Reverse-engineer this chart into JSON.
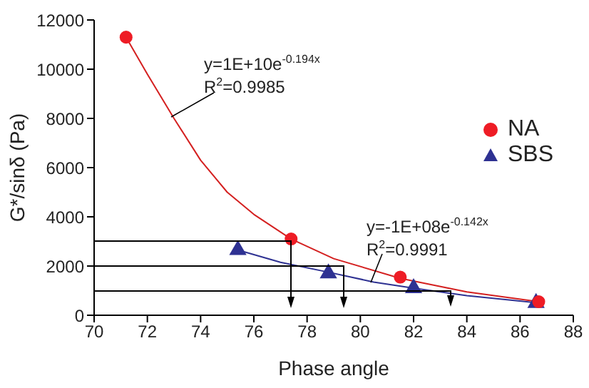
{
  "chart_data": {
    "type": "scatter",
    "xlabel": "Phase angle",
    "ylabel": "G*/sinδ (Pa)",
    "xlim": [
      70,
      88
    ],
    "xticks": [
      70,
      72,
      74,
      76,
      78,
      80,
      82,
      84,
      86,
      88
    ],
    "ylim": [
      0,
      12000
    ],
    "yticks": [
      0,
      2000,
      4000,
      6000,
      8000,
      10000,
      12000
    ],
    "grid": false,
    "legend": "right",
    "series": [
      {
        "name": "NA",
        "marker": "circle",
        "color": "#ee1c25",
        "x": [
          71.2,
          77.4,
          81.5,
          86.7
        ],
        "values": [
          11300,
          3100,
          1550,
          550
        ]
      },
      {
        "name": "SBS",
        "marker": "triangle",
        "color": "#2e3192",
        "x": [
          75.4,
          78.8,
          82.0,
          86.6
        ],
        "values": [
          2650,
          1700,
          1100,
          500
        ]
      },
      {
        "type": "line",
        "marker": "none",
        "color": "#d42020",
        "x": [
          71.2,
          72,
          73,
          74,
          75,
          76,
          77.4,
          79,
          81.5,
          84,
          86.7
        ],
        "values": [
          11300,
          9800,
          8000,
          6300,
          5000,
          4100,
          3100,
          2300,
          1500,
          950,
          550
        ]
      },
      {
        "type": "line",
        "marker": "none",
        "color": "#2e3192",
        "x": [
          75.4,
          77,
          78.8,
          80.5,
          82,
          84,
          86.7
        ],
        "values": [
          2650,
          2150,
          1750,
          1350,
          1100,
          800,
          500
        ]
      }
    ],
    "annotations": [
      "y=1E+10e$^{-0.194x}$",
      "R$^{2}$=0.9985",
      "y=-1E+08e$^{-0.142x}$",
      "R$^{2}$=0.9991"
    ]
  }
}
